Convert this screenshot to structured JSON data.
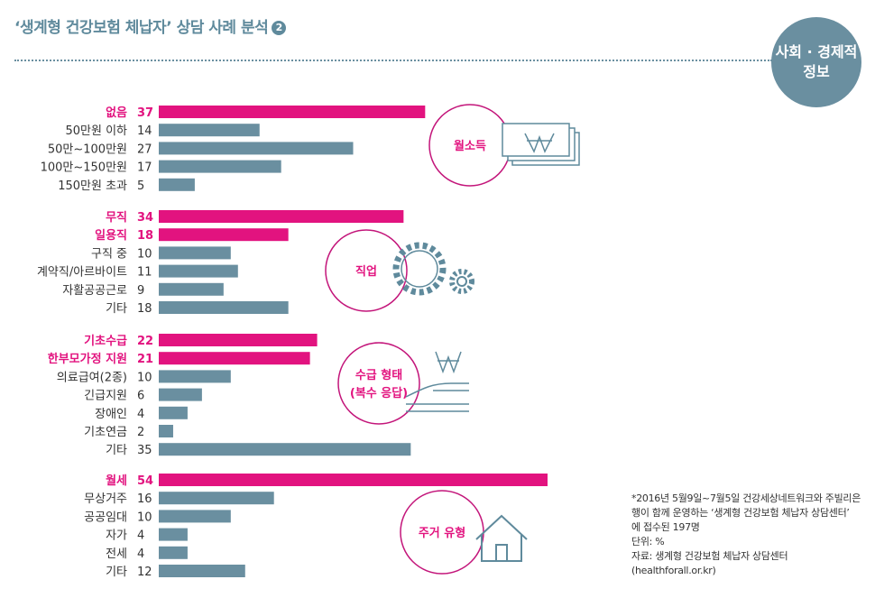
{
  "header": {
    "title": "‘생계형 건강보험 체납자’ 상담 사례 분석",
    "title_number": "2",
    "badge_line1": "사회 · 경제적",
    "badge_line2": "정보"
  },
  "colors": {
    "highlight": "#e2137f",
    "bar": "#6a8fa0",
    "circle": "#c3157a"
  },
  "notes": [
    "*2016년 5월9일~7월5일 건강세상네트워크와 주빌리은",
    "행이 함께 운영하는 ‘생계형 건강보험 체납자 상담센터’",
    "에 접수된 197명",
    "단위: %",
    "자료: 생계형 건강보험 체납자 상담센터",
    "(healthforall.or.kr)"
  ],
  "chart_data": {
    "type": "bar",
    "unit": "%",
    "xlim": [
      0,
      54
    ],
    "groups": [
      {
        "name": "월소득",
        "categories": [
          "없음",
          "50만원 이하",
          "50만~100만원",
          "100만~150만원",
          "150만원 초과"
        ],
        "values": [
          37,
          14,
          27,
          17,
          5
        ],
        "highlight": [
          true,
          false,
          false,
          false,
          false
        ]
      },
      {
        "name": "직업",
        "categories": [
          "무직",
          "일용직",
          "구직 중",
          "계약직/아르바이트",
          "자활공공근로",
          "기타"
        ],
        "values": [
          34,
          18,
          10,
          11,
          9,
          18
        ],
        "highlight": [
          true,
          true,
          false,
          false,
          false,
          false
        ]
      },
      {
        "name": "수급 형태\n(복수 응답)",
        "categories": [
          "기초수급",
          "한부모가정 지원",
          "의료급여(2종)",
          "긴급지원",
          "장애인",
          "기초연금",
          "기타"
        ],
        "values": [
          22,
          21,
          10,
          6,
          4,
          2,
          35
        ],
        "highlight": [
          true,
          true,
          false,
          false,
          false,
          false,
          false
        ]
      },
      {
        "name": "주거 유형",
        "categories": [
          "월세",
          "무상거주",
          "공공임대",
          "자가",
          "전세",
          "기타"
        ],
        "values": [
          54,
          16,
          10,
          4,
          4,
          12
        ],
        "highlight": [
          true,
          false,
          false,
          false,
          false,
          false
        ]
      }
    ]
  }
}
